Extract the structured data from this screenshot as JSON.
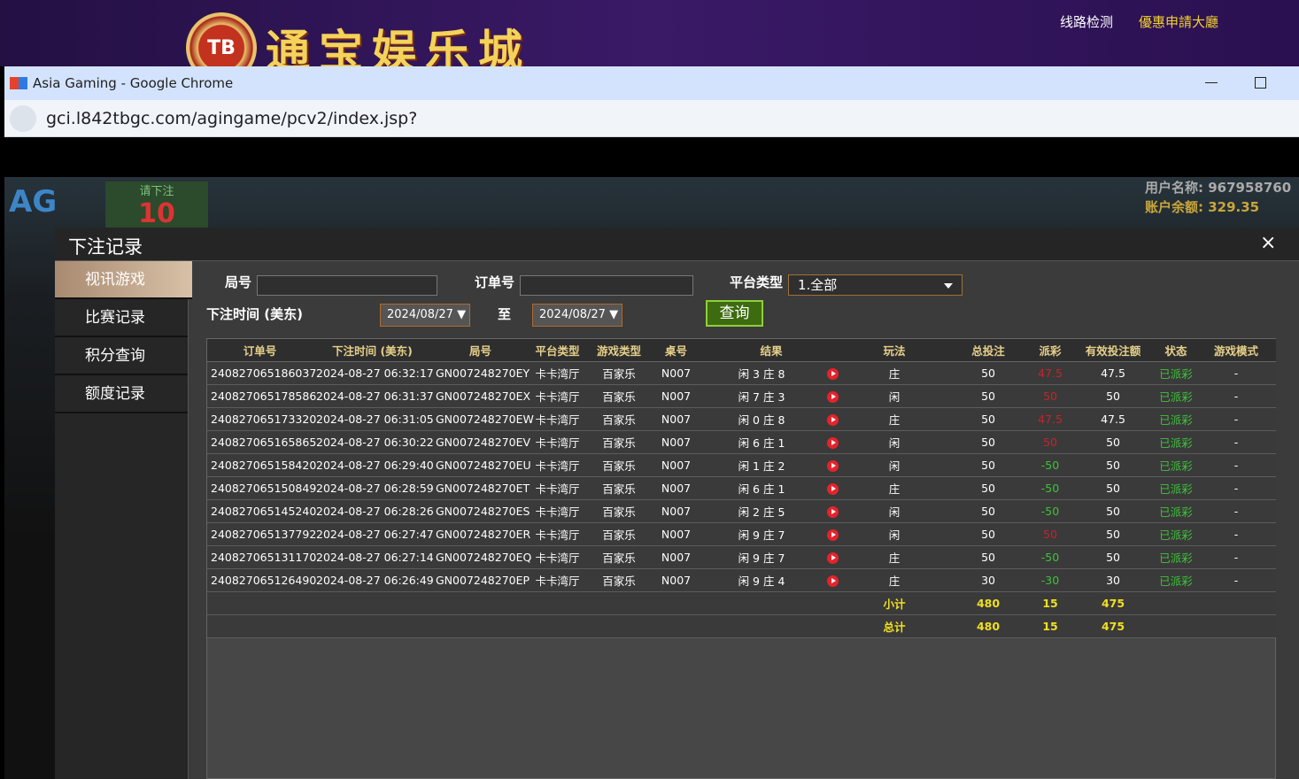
{
  "banner": {
    "logo": "TB",
    "site_name": "通宝娱乐城",
    "links": [
      "线路检测",
      "優惠申請大廳"
    ]
  },
  "browser": {
    "title": "Asia Gaming - Google Chrome",
    "url": "gci.l842tbgc.com/agingame/pcv2/index.jsp?"
  },
  "game": {
    "brand": "AG",
    "bet_prompt": "请下注",
    "countdown": "10",
    "user": "用户名称: 967958760",
    "balance": "账户余额: 329.35"
  },
  "modal": {
    "title": "下注记录",
    "close": "×",
    "menu": [
      "视讯游戏",
      "比赛记录",
      "积分查询",
      "额度记录"
    ],
    "filters": {
      "round_label": "局号",
      "order_label": "订单号",
      "platform_label": "平台类型",
      "platform_value": "1.全部",
      "time_label": "下注时间 (美东)",
      "date_from": "2024/08/27",
      "to_label": "至",
      "date_to": "2024/08/27",
      "query_button": "查询"
    },
    "table": {
      "headers": [
        "订单号",
        "下注时间 (美东)",
        "局号",
        "平台类型",
        "游戏类型",
        "桌号",
        "结果",
        "玩法",
        "总投注",
        "派彩",
        "有效投注额",
        "状态",
        "游戏模式"
      ],
      "rows": [
        [
          "240827065186037",
          "2024-08-27 06:32:17",
          "GN007248270EY",
          "卡卡湾厅",
          "百家乐",
          "N007",
          "闲 3 庄 8",
          "庄",
          50,
          47.5,
          47.5,
          "已派彩",
          "-"
        ],
        [
          "240827065178586",
          "2024-08-27 06:31:37",
          "GN007248270EX",
          "卡卡湾厅",
          "百家乐",
          "N007",
          "闲 7 庄 3",
          "闲",
          50,
          50,
          50,
          "已派彩",
          "-"
        ],
        [
          "240827065173320",
          "2024-08-27 06:31:05",
          "GN007248270EW",
          "卡卡湾厅",
          "百家乐",
          "N007",
          "闲 0 庄 8",
          "庄",
          50,
          47.5,
          47.5,
          "已派彩",
          "-"
        ],
        [
          "240827065165865",
          "2024-08-27 06:30:22",
          "GN007248270EV",
          "卡卡湾厅",
          "百家乐",
          "N007",
          "闲 6 庄 1",
          "闲",
          50,
          50,
          50,
          "已派彩",
          "-"
        ],
        [
          "240827065158420",
          "2024-08-27 06:29:40",
          "GN007248270EU",
          "卡卡湾厅",
          "百家乐",
          "N007",
          "闲 1 庄 2",
          "闲",
          50,
          -50,
          50,
          "已派彩",
          "-"
        ],
        [
          "240827065150849",
          "2024-08-27 06:28:59",
          "GN007248270ET",
          "卡卡湾厅",
          "百家乐",
          "N007",
          "闲 6 庄 1",
          "庄",
          50,
          -50,
          50,
          "已派彩",
          "-"
        ],
        [
          "240827065145240",
          "2024-08-27 06:28:26",
          "GN007248270ES",
          "卡卡湾厅",
          "百家乐",
          "N007",
          "闲 2 庄 5",
          "闲",
          50,
          -50,
          50,
          "已派彩",
          "-"
        ],
        [
          "240827065137792",
          "2024-08-27 06:27:47",
          "GN007248270ER",
          "卡卡湾厅",
          "百家乐",
          "N007",
          "闲 9 庄 7",
          "闲",
          50,
          50,
          50,
          "已派彩",
          "-"
        ],
        [
          "240827065131170",
          "2024-08-27 06:27:14",
          "GN007248270EQ",
          "卡卡湾厅",
          "百家乐",
          "N007",
          "闲 9 庄 7",
          "庄",
          50,
          -50,
          50,
          "已派彩",
          "-"
        ],
        [
          "240827065126490",
          "2024-08-27 06:26:49",
          "GN007248270EP",
          "卡卡湾厅",
          "百家乐",
          "N007",
          "闲 9 庄 4",
          "庄",
          30,
          -30,
          30,
          "已派彩",
          "-"
        ]
      ],
      "subtotal": {
        "label": "小计",
        "bet": 480,
        "payout": 15,
        "valid": 475
      },
      "total": {
        "label": "总计",
        "bet": 480,
        "payout": 15,
        "valid": 475
      }
    }
  }
}
